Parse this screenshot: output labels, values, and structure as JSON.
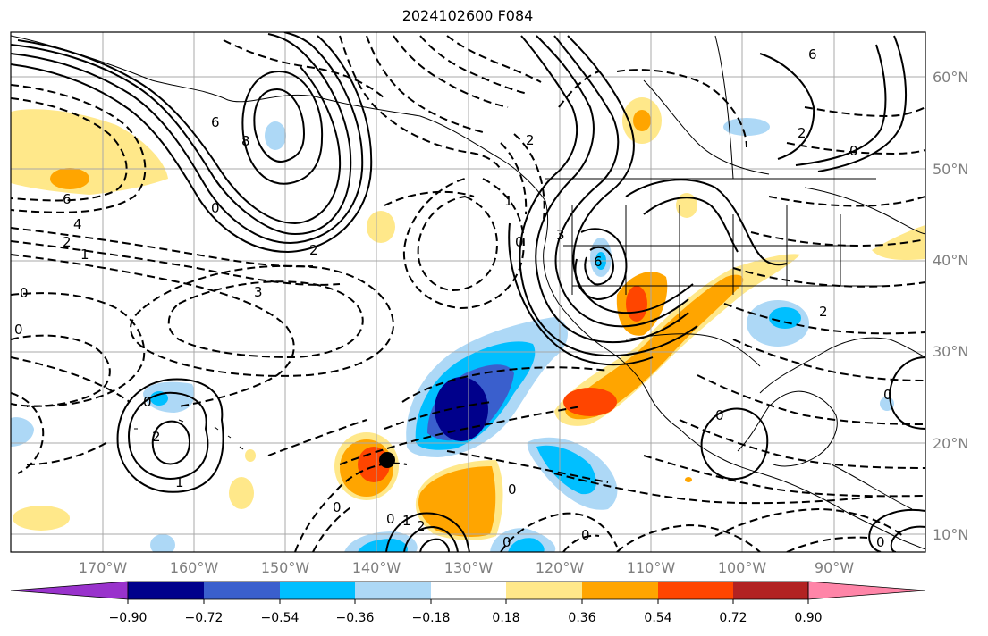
{
  "title": "2024102600 F084",
  "lat_labels": [
    "60°N",
    "50°N",
    "40°N",
    "30°N",
    "20°N",
    "10°N"
  ],
  "lon_labels": [
    "170°W",
    "160°W",
    "150°W",
    "140°W",
    "130°W",
    "120°W",
    "110°W",
    "100°W",
    "90°W"
  ],
  "contour_labels": [
    "6",
    "4",
    "2",
    "1",
    "0",
    "0",
    "8",
    "6",
    "2",
    "3",
    "2",
    "1",
    "0",
    "6",
    "0",
    "2",
    "3",
    "6",
    "0",
    "2",
    "1",
    "0",
    "0",
    "2",
    "1",
    "0",
    "0",
    "0",
    "0",
    "0",
    "0",
    "0",
    "2"
  ],
  "colorbar": {
    "ticks": [
      "−0.90",
      "−0.72",
      "−0.54",
      "−0.36",
      "−0.18",
      "0.18",
      "0.36",
      "0.54",
      "0.72",
      "0.90"
    ],
    "colors": [
      "#9932cc",
      "#00008b",
      "#3a5fcd",
      "#00bfff",
      "#add8f6",
      "#ffffff",
      "#ffe88a",
      "#ffa500",
      "#ff4500",
      "#b22222",
      "#ff85a8"
    ]
  },
  "markers": [
    {
      "name": "tropical-cyclone-center"
    }
  ]
}
